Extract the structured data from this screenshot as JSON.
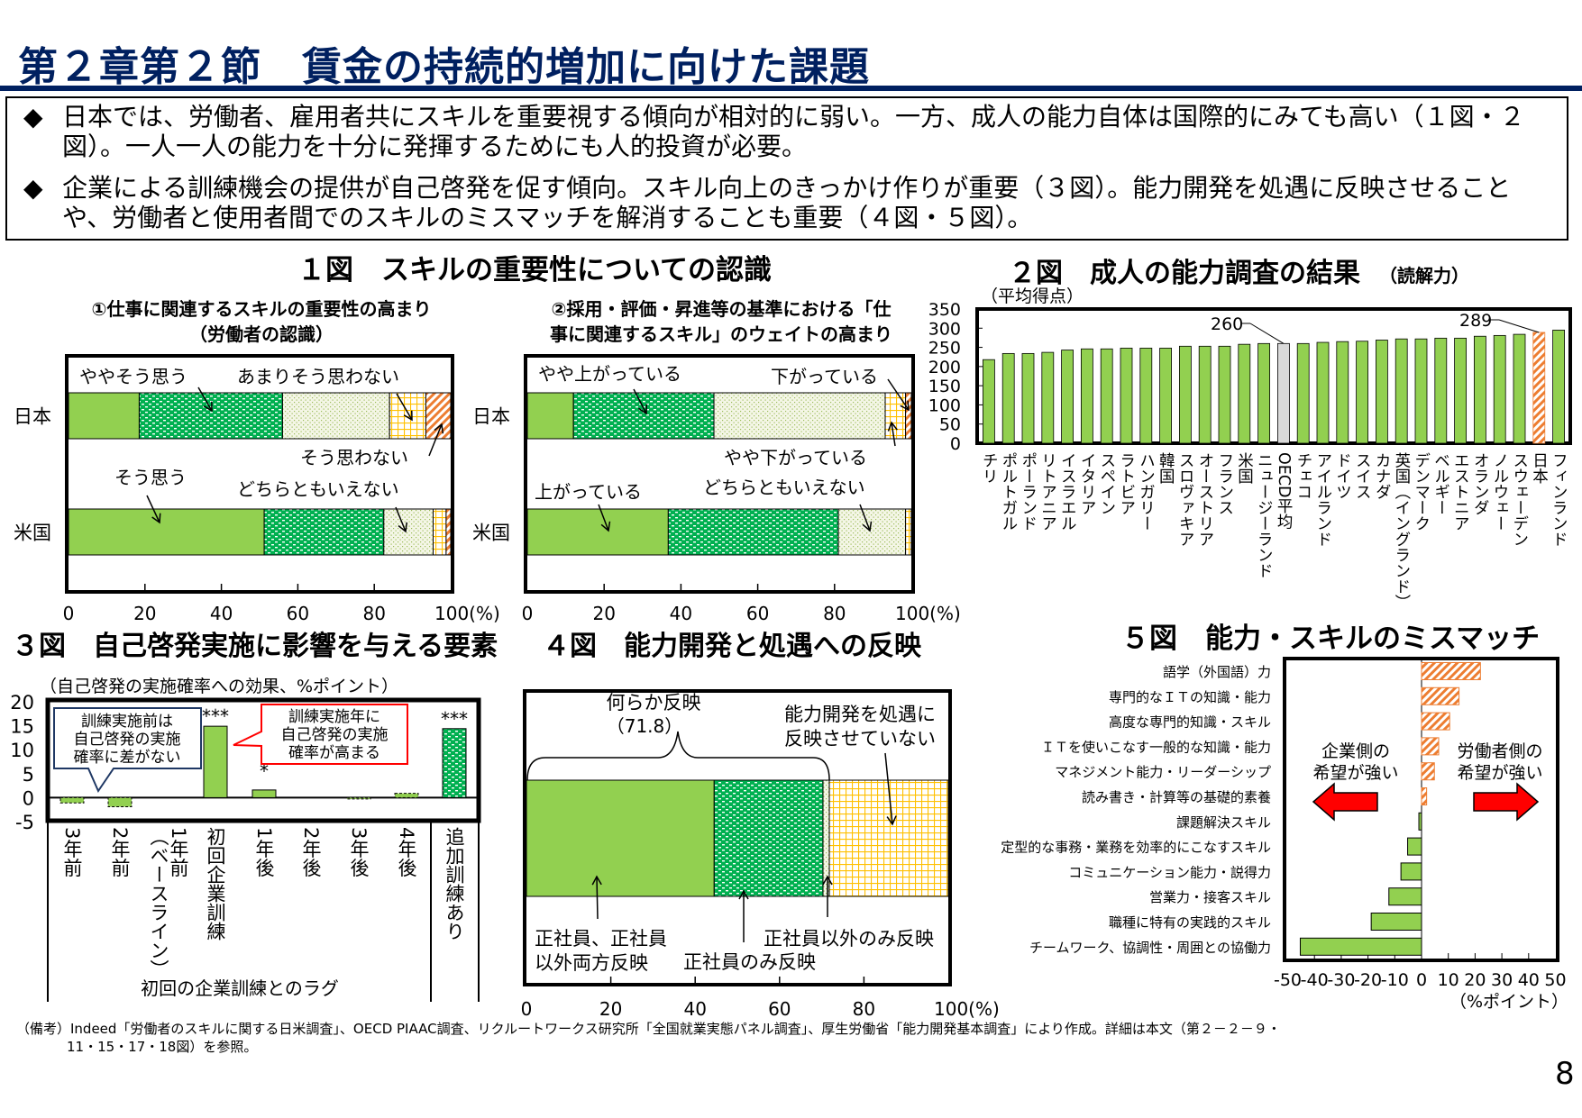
{
  "header": {
    "title": "第２章第２節　賃金の持続的増加に向けた課題"
  },
  "summary": {
    "bullet_icon": "diamond-bullet",
    "bullet": "◆",
    "items": [
      "日本では、労働者、雇用者共にスキルを重要視する傾向が相対的に弱い。一方、成人の能力自体は国際的にみても高い（１図・２図）。一人一人の能力を十分に発揮するためにも人的投資が必要。",
      "企業による訓練機会の提供が自己啓発を促す傾向。スキル向上のきっかけ作りが重要（３図）。能力開発を処遇に反映させることや、労働者と使用者間でのスキルのミスマッチを解消することも重要（４図・５図）。"
    ]
  },
  "figure1": {
    "title": "１図　スキルの重要性についての認識"
  },
  "colors": {
    "title_navy": "#002060",
    "green": "#92D050",
    "dark_green_dotted": "#00B050",
    "light_dotted": "#EEF3DC",
    "yellow_grid": "#FFC000",
    "orange_hatch": "#ED7D31",
    "oecd_gray": "#D9D9D9",
    "callout_red": "#FF0000",
    "callout_navy": "#1F3864"
  },
  "chart_data": [
    {
      "type": "bar",
      "orientation": "horizontal-stacked",
      "title_lines": [
        "①仕事に関連するスキルの重要性の高まり",
        "（労働者の認識）"
      ],
      "categories": [
        "日本",
        "米国"
      ],
      "series": [
        {
          "name": "そう思う",
          "values": [
            18.5,
            51.2
          ]
        },
        {
          "name": "ややそう思う",
          "values": [
            37.5,
            31.3
          ]
        },
        {
          "name": "どちらともいえない",
          "values": [
            28.0,
            12.9
          ]
        },
        {
          "name": "あまりそう思わない",
          "values": [
            9.5,
            3.4
          ]
        },
        {
          "name": "そう思わない",
          "values": [
            6.5,
            1.2
          ]
        }
      ],
      "xlim": [
        0,
        100
      ],
      "xtick_labels": [
        "0",
        "20",
        "40",
        "60",
        "80",
        "100(%)"
      ]
    },
    {
      "type": "bar",
      "orientation": "horizontal-stacked",
      "title_lines": [
        "②採用・評価・昇進等の基準における「仕",
        "事に関連するスキル」のウェイトの高まり"
      ],
      "categories": [
        "日本",
        "米国"
      ],
      "series": [
        {
          "name": "上がっている",
          "values": [
            12.0,
            36.7
          ]
        },
        {
          "name": "やや上がっている",
          "values": [
            36.6,
            44.3
          ]
        },
        {
          "name": "どちらともいえない",
          "values": [
            44.6,
            17.5
          ]
        },
        {
          "name": "やや下がっている",
          "values": [
            5.3,
            1.5
          ]
        },
        {
          "name": "下がっている",
          "values": [
            1.5,
            0
          ]
        }
      ],
      "xlim": [
        0,
        100
      ],
      "xtick_labels": [
        "0",
        "20",
        "40",
        "60",
        "80",
        "100(%)"
      ]
    },
    {
      "type": "bar",
      "title": "２図　成人の能力調査の結果",
      "title_note": "（読解力）",
      "ylabel": "（平均得点）",
      "ylim": [
        0,
        350
      ],
      "ytick_labels": [
        "0",
        "50",
        "100",
        "150",
        "200",
        "250",
        "300",
        "350"
      ],
      "categories": [
        "チリ",
        "ポルトガル",
        "ポーランド",
        "リトアニア",
        "イスラエル",
        "イタリア",
        "スペイン",
        "ラトビア",
        "ハンガリー",
        "韓国",
        "スロヴァキア",
        "オーストリア",
        "フランス",
        "米国",
        "ニュージーランド",
        "OECD平均",
        "チェコ",
        "アイルランド",
        "ドイツ",
        "スイス",
        "カナダ",
        "英国（イングランド）",
        "デンマーク",
        "ベルギー",
        "エストニア",
        "オランダ",
        "ノルウェー",
        "スウェーデン",
        "日本",
        "フィンランド"
      ],
      "values": [
        218,
        234,
        234,
        237,
        243,
        246,
        246,
        248,
        248,
        248,
        253,
        253,
        253,
        258,
        260,
        260,
        260,
        263,
        265,
        266,
        269,
        272,
        272,
        274,
        274,
        279,
        281,
        284,
        289,
        295
      ],
      "data_labels": {
        "OECD平均": "260",
        "日本": "289"
      },
      "grid": false
    },
    {
      "type": "bar",
      "title": "３図　自己啓発実施に影響を与える要素",
      "ylabel": "（自己啓発の実施確率への効果、%ポイント）",
      "xlabel": "初回の企業訓練とのラグ",
      "ylim": [
        -5,
        20
      ],
      "ytick_labels": [
        "-5",
        "0",
        "5",
        "10",
        "15",
        "20"
      ],
      "categories": [
        "3年前",
        "2年前",
        "1年前\n（ベースライン）",
        "初回企業訓練",
        "1年後",
        "2年後",
        "3年後",
        "4年後",
        "追加訓練あり"
      ],
      "values": [
        -1.1,
        -1.9,
        0,
        14.9,
        1.6,
        0,
        -0.2,
        0.9,
        14.4
      ],
      "significance": [
        "",
        "",
        "",
        "***",
        "*",
        "",
        "",
        "",
        "***"
      ],
      "callouts": [
        {
          "lines": [
            "訓練実施前は",
            "自己啓発の実施",
            "確率に差がない"
          ]
        },
        {
          "lines": [
            "訓練実施年に",
            "自己啓発の実施",
            "確率が高まる"
          ]
        }
      ]
    },
    {
      "type": "bar",
      "orientation": "horizontal-stacked",
      "title": "４図　能力開発と処遇への反映",
      "series": [
        {
          "name_lines": [
            "正社員、正社員",
            "以外両方反映"
          ],
          "value": 44.5
        },
        {
          "name_lines": [
            "正社員のみ反映"
          ],
          "value": 25.8
        },
        {
          "name_lines": [
            "正社員以外のみ反映"
          ],
          "value": 1.5
        },
        {
          "name_lines": [
            "能力開発を処遇に",
            "反映させていない"
          ],
          "value": 28.2
        }
      ],
      "bracket_label": "何らか反映",
      "bracket_value": "（71.8）",
      "xlim": [
        0,
        100
      ],
      "xtick_labels": [
        "0",
        "20",
        "40",
        "60",
        "80",
        "100(%)"
      ]
    },
    {
      "type": "bar",
      "orientation": "horizontal",
      "title": "５図　能力・スキルのミスマッチ",
      "xlabel": "（%ポイント）",
      "xlim": [
        -50,
        50
      ],
      "xtick_labels": [
        "-50",
        "-40",
        "-30",
        "-20",
        "-10",
        "0",
        "10",
        "20",
        "30",
        "40",
        "50"
      ],
      "categories": [
        "語学（外国語）力",
        "専門的なＩＴの知識・能力",
        "高度な専門的知識・スキル",
        "ＩＴを使いこなす一般的な知識・能力",
        "マネジメント能力・リーダーシップ",
        "読み書き・計算等の基礎的素養",
        "課題解決スキル",
        "定型的な事務・業務を効率的にこなすスキル",
        "コミュニケーション能力・説得力",
        "営業力・接客スキル",
        "職種に特有の実践的スキル",
        "チームワーク、協調性・周囲との協働力"
      ],
      "values": [
        22,
        14,
        10.5,
        6.4,
        4.8,
        1.9,
        -1,
        -5.2,
        -7.7,
        -12.2,
        -18.8,
        -45.3
      ],
      "annotations": {
        "left_lines": [
          "企業側の",
          "希望が強い"
        ],
        "right_lines": [
          "労働者側の",
          "希望が強い"
        ]
      }
    }
  ],
  "footnote": {
    "lines": [
      "（備考）Indeed「労働者のスキルに関する日米調査」、OECD PIAAC調査、リクルートワークス研究所「全国就業実態パネル調査」、厚生労働省「能力開発基本調査」により作成。詳細は本文（第２－２－９・",
      "11・15・17・18図）を参照。"
    ]
  },
  "page_number": "8"
}
